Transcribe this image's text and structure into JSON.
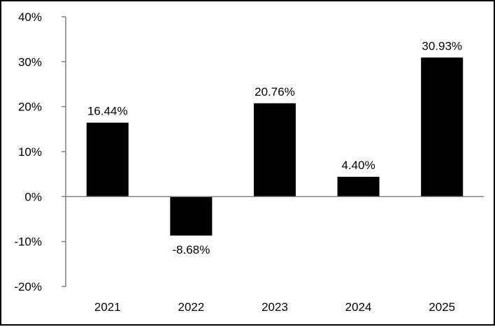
{
  "chart_data": {
    "type": "bar",
    "categories": [
      "2021",
      "2022",
      "2023",
      "2024",
      "2025"
    ],
    "values": [
      16.44,
      -8.68,
      20.76,
      4.4,
      30.93
    ],
    "data_labels": [
      "16.44%",
      "-8.68%",
      "20.76%",
      "4.40%",
      "30.93%"
    ],
    "title": "",
    "xlabel": "",
    "ylabel": "",
    "ylim": [
      -20,
      40
    ],
    "yticks": [
      40,
      30,
      20,
      10,
      0,
      -10,
      -20
    ],
    "ytick_labels": [
      "40%",
      "30%",
      "20%",
      "10%",
      "0%",
      "-10%",
      "-20%"
    ],
    "grid": false,
    "legend": "none",
    "colors": {
      "bar": "#000000",
      "axis": "#808080",
      "background": "#ffffff"
    }
  }
}
